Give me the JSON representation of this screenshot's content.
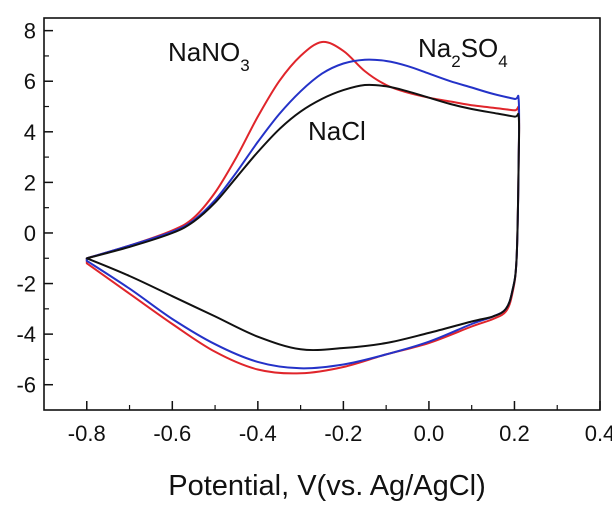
{
  "chart_data": {
    "type": "line",
    "title": "",
    "xlabel": "Potential, V(vs. Ag/AgCl)",
    "ylabel": "",
    "xlim": [
      -0.9,
      0.4
    ],
    "ylim": [
      -7,
      8.5
    ],
    "xticks": [
      -0.8,
      -0.6,
      -0.4,
      -0.2,
      0.0,
      0.2,
      0.4
    ],
    "xtick_labels": [
      "-0.8",
      "-0.6",
      "-0.4",
      "-0.2",
      "0.0",
      "0.2",
      "0.4"
    ],
    "yticks": [
      -6,
      -4,
      -2,
      0,
      2,
      4,
      6,
      8
    ],
    "ytick_labels": [
      "-6",
      "-4",
      "-2",
      "0",
      "2",
      "4",
      "6",
      "8"
    ],
    "grid": false,
    "series": [
      {
        "name": "NaNO3",
        "label_parts": [
          "NaNO",
          "3",
          ""
        ],
        "color": "#e0252b",
        "points": [
          [
            -0.8,
            -1.0
          ],
          [
            -0.7,
            -0.5
          ],
          [
            -0.6,
            0.1
          ],
          [
            -0.55,
            0.6
          ],
          [
            -0.5,
            1.6
          ],
          [
            -0.45,
            3.0
          ],
          [
            -0.4,
            4.6
          ],
          [
            -0.35,
            6.0
          ],
          [
            -0.3,
            7.0
          ],
          [
            -0.25,
            7.55
          ],
          [
            -0.2,
            7.2
          ],
          [
            -0.15,
            6.4
          ],
          [
            -0.1,
            5.85
          ],
          [
            -0.05,
            5.55
          ],
          [
            0.0,
            5.35
          ],
          [
            0.05,
            5.2
          ],
          [
            0.1,
            5.05
          ],
          [
            0.15,
            4.95
          ],
          [
            0.2,
            4.85
          ],
          [
            0.21,
            4.85
          ],
          [
            0.21,
            3.0
          ],
          [
            0.205,
            -1.0
          ],
          [
            0.195,
            -2.4
          ],
          [
            0.18,
            -3.1
          ],
          [
            0.15,
            -3.4
          ],
          [
            0.1,
            -3.7
          ],
          [
            0.0,
            -4.35
          ],
          [
            -0.1,
            -4.8
          ],
          [
            -0.2,
            -5.3
          ],
          [
            -0.3,
            -5.55
          ],
          [
            -0.4,
            -5.4
          ],
          [
            -0.5,
            -4.7
          ],
          [
            -0.6,
            -3.6
          ],
          [
            -0.7,
            -2.4
          ],
          [
            -0.8,
            -1.2
          ]
        ]
      },
      {
        "name": "Na2SO4",
        "label_parts": [
          "Na",
          "2",
          "SO",
          "4"
        ],
        "color": "#2432c8",
        "points": [
          [
            -0.8,
            -1.0
          ],
          [
            -0.7,
            -0.5
          ],
          [
            -0.6,
            0.05
          ],
          [
            -0.55,
            0.5
          ],
          [
            -0.5,
            1.3
          ],
          [
            -0.45,
            2.4
          ],
          [
            -0.4,
            3.6
          ],
          [
            -0.35,
            4.7
          ],
          [
            -0.3,
            5.6
          ],
          [
            -0.25,
            6.3
          ],
          [
            -0.2,
            6.7
          ],
          [
            -0.15,
            6.85
          ],
          [
            -0.1,
            6.8
          ],
          [
            -0.05,
            6.6
          ],
          [
            0.0,
            6.3
          ],
          [
            0.05,
            6.0
          ],
          [
            0.1,
            5.75
          ],
          [
            0.15,
            5.5
          ],
          [
            0.2,
            5.3
          ],
          [
            0.21,
            5.25
          ],
          [
            0.21,
            3.0
          ],
          [
            0.205,
            -1.0
          ],
          [
            0.195,
            -2.3
          ],
          [
            0.18,
            -3.0
          ],
          [
            0.15,
            -3.3
          ],
          [
            0.1,
            -3.6
          ],
          [
            0.0,
            -4.3
          ],
          [
            -0.1,
            -4.8
          ],
          [
            -0.2,
            -5.2
          ],
          [
            -0.3,
            -5.35
          ],
          [
            -0.4,
            -5.1
          ],
          [
            -0.5,
            -4.4
          ],
          [
            -0.6,
            -3.4
          ],
          [
            -0.7,
            -2.2
          ],
          [
            -0.8,
            -1.1
          ]
        ]
      },
      {
        "name": "NaCl",
        "label_parts": [
          "NaCl",
          "",
          ""
        ],
        "color": "#111111",
        "points": [
          [
            -0.8,
            -1.0
          ],
          [
            -0.7,
            -0.55
          ],
          [
            -0.6,
            0.0
          ],
          [
            -0.55,
            0.45
          ],
          [
            -0.5,
            1.2
          ],
          [
            -0.45,
            2.2
          ],
          [
            -0.4,
            3.2
          ],
          [
            -0.35,
            4.1
          ],
          [
            -0.3,
            4.8
          ],
          [
            -0.25,
            5.3
          ],
          [
            -0.2,
            5.65
          ],
          [
            -0.15,
            5.85
          ],
          [
            -0.1,
            5.8
          ],
          [
            -0.05,
            5.6
          ],
          [
            0.0,
            5.35
          ],
          [
            0.05,
            5.1
          ],
          [
            0.1,
            4.9
          ],
          [
            0.15,
            4.75
          ],
          [
            0.2,
            4.6
          ],
          [
            0.21,
            4.6
          ],
          [
            0.21,
            3.0
          ],
          [
            0.205,
            -1.0
          ],
          [
            0.195,
            -2.3
          ],
          [
            0.18,
            -3.0
          ],
          [
            0.15,
            -3.3
          ],
          [
            0.1,
            -3.5
          ],
          [
            0.0,
            -3.95
          ],
          [
            -0.1,
            -4.35
          ],
          [
            -0.2,
            -4.55
          ],
          [
            -0.3,
            -4.6
          ],
          [
            -0.4,
            -4.1
          ],
          [
            -0.5,
            -3.3
          ],
          [
            -0.6,
            -2.5
          ],
          [
            -0.7,
            -1.7
          ],
          [
            -0.8,
            -1.0
          ]
        ]
      }
    ]
  }
}
